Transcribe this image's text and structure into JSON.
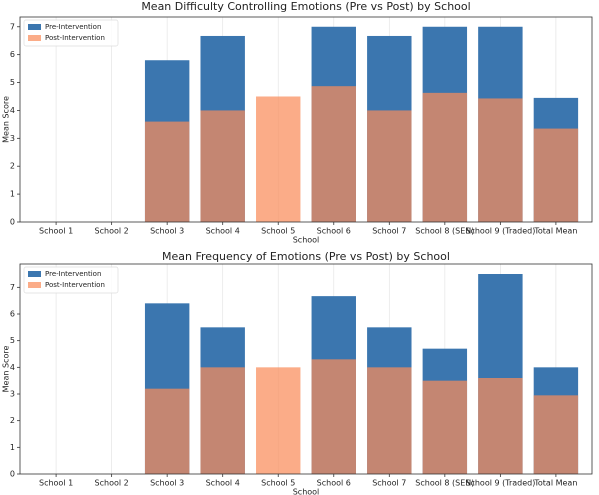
{
  "chart_data": [
    {
      "type": "bar",
      "title": "Mean Difficulty Controlling Emotions (Pre vs Post) by School",
      "x_label": "School",
      "y_label": "Mean Score",
      "categories": [
        "School 1",
        "School 2",
        "School 3",
        "School 4",
        "School 5",
        "School 6",
        "School 7",
        "School 8 (SEN)",
        "School 9 (Traded)",
        "Total Mean"
      ],
      "series": [
        {
          "name": "Pre-Intervention",
          "color": "#3b76af",
          "values": [
            null,
            null,
            5.8,
            6.67,
            null,
            7,
            6.67,
            7,
            7,
            4.45
          ]
        },
        {
          "name": "Post-Intervention",
          "color": "#fa8c5a",
          "values": [
            null,
            null,
            3.6,
            4.0,
            4.5,
            4.87,
            4.0,
            4.63,
            4.43,
            3.35
          ]
        }
      ],
      "ylim": [
        0,
        7.35
      ],
      "yticks": [
        0,
        1,
        2,
        3,
        4,
        5,
        6,
        7
      ],
      "grid": true,
      "legend": "upper left"
    },
    {
      "type": "bar",
      "title": "Mean Frequency of Emotions (Pre vs Post) by School",
      "x_label": "School",
      "y_label": "Mean Score",
      "categories": [
        "School 1",
        "School 2",
        "School 3",
        "School 4",
        "School 5",
        "School 6",
        "School 7",
        "School 8 (SEN)",
        "School 9 (Traded)",
        "Total Mean"
      ],
      "series": [
        {
          "name": "Pre-Intervention",
          "color": "#3b76af",
          "values": [
            null,
            null,
            6.4,
            5.5,
            null,
            6.67,
            5.5,
            4.7,
            7.5,
            4.0
          ]
        },
        {
          "name": "Post-Intervention",
          "color": "#fa8c5a",
          "values": [
            null,
            null,
            3.2,
            4.0,
            4.0,
            4.3,
            4.0,
            3.5,
            3.6,
            2.95
          ]
        }
      ],
      "ylim": [
        0,
        7.875
      ],
      "yticks": [
        0,
        1,
        2,
        3,
        4,
        5,
        6,
        7
      ],
      "grid": true,
      "legend": "upper left"
    }
  ]
}
